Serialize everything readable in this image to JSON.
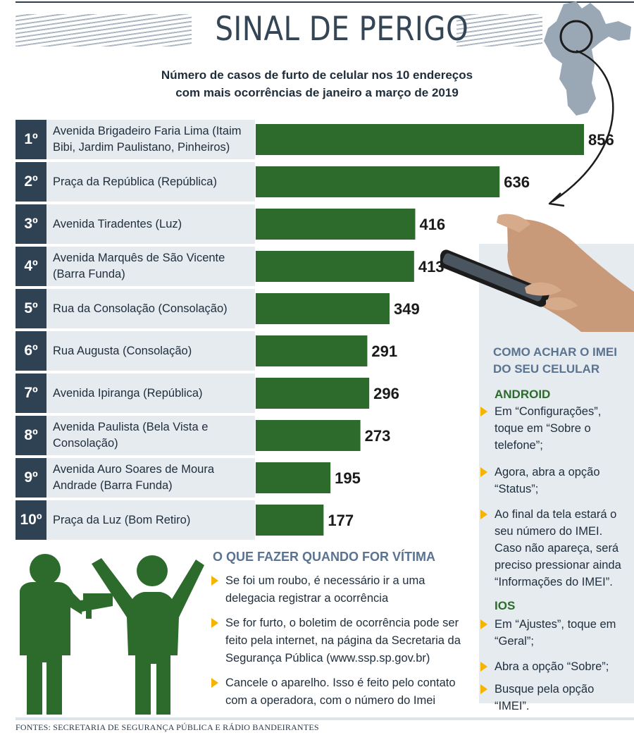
{
  "title": "SINAL DE PERIGO",
  "subtitle_line1": "Número de casos de furto de celular nos 10 endereços",
  "subtitle_line2": "com mais ocorrências de janeiro a março de 2019",
  "colors": {
    "bar": "#2c6b2c",
    "rank_bg": "#2e4254",
    "row_bg": "#e6ebf0",
    "accent": "#f5b400",
    "heading": "#5a7390"
  },
  "chart_data": {
    "type": "bar",
    "orientation": "horizontal",
    "title": "SINAL DE PERIGO",
    "subtitle": "Número de casos de furto de celular nos 10 endereços com mais ocorrências de janeiro a março de 2019",
    "ranks": [
      "1º",
      "2º",
      "3º",
      "4º",
      "5º",
      "6º",
      "7º",
      "8º",
      "9º",
      "10º"
    ],
    "categories": [
      "Avenida Brigadeiro Faria Lima (Itaim Bibi, Jardim Paulistano, Pinheiros)",
      "Praça da República (República)",
      "Avenida Tiradentes (Luz)",
      "Avenida Marquês de São Vicente (Barra Funda)",
      "Rua da Consolação (Consolação)",
      "Rua Augusta (Consolação)",
      "Avenida Ipiranga (República)",
      "Avenida Paulista (Bela Vista e Consolação)",
      "Avenida Auro Soares de Moura Andrade (Barra Funda)",
      "Praça da Luz (Bom Retiro)"
    ],
    "values": [
      856,
      636,
      416,
      413,
      349,
      291,
      296,
      273,
      195,
      177
    ],
    "xlim": [
      0,
      856
    ]
  },
  "imei": {
    "title": "COMO ACHAR O IMEI DO SEU CELULAR",
    "android_label": "ANDROID",
    "android_tips": [
      "Em “Configurações”, toque em “Sobre o telefone”;",
      "Agora, abra a opção “Status”;",
      "Ao final da tela estará o seu número do IMEI. Caso não apareça, será preciso pressionar ainda “Informações do IMEI”."
    ],
    "ios_label": "IOS",
    "ios_tips": [
      "Em “Ajustes”, toque em “Geral”;",
      "Abra a opção “Sobre”;",
      "Busque pela opção “IMEI”."
    ]
  },
  "victim": {
    "title": "O QUE FAZER QUANDO FOR VÍTIMA",
    "tips": [
      "Se foi um roubo, é necessário ir a uma delegacia registrar a ocorrência",
      "Se for furto, o boletim de ocorrência pode ser feito pela internet, na página da Secretaria da Segurança Pública (www.ssp.sp.gov.br)",
      "Cancele o aparelho. Isso é feito pelo contato com a operadora, com o número do Imei"
    ]
  },
  "footer": "FONTES: SECRETARIA DE SEGURANÇA PÚBLICA E RÁDIO BANDEIRANTES",
  "icons": [
    "sao-paulo-map-icon",
    "curved-arrow-icon",
    "hand-with-phone-icon",
    "robbery-figures-icon",
    "bullet-triangle-icon"
  ]
}
